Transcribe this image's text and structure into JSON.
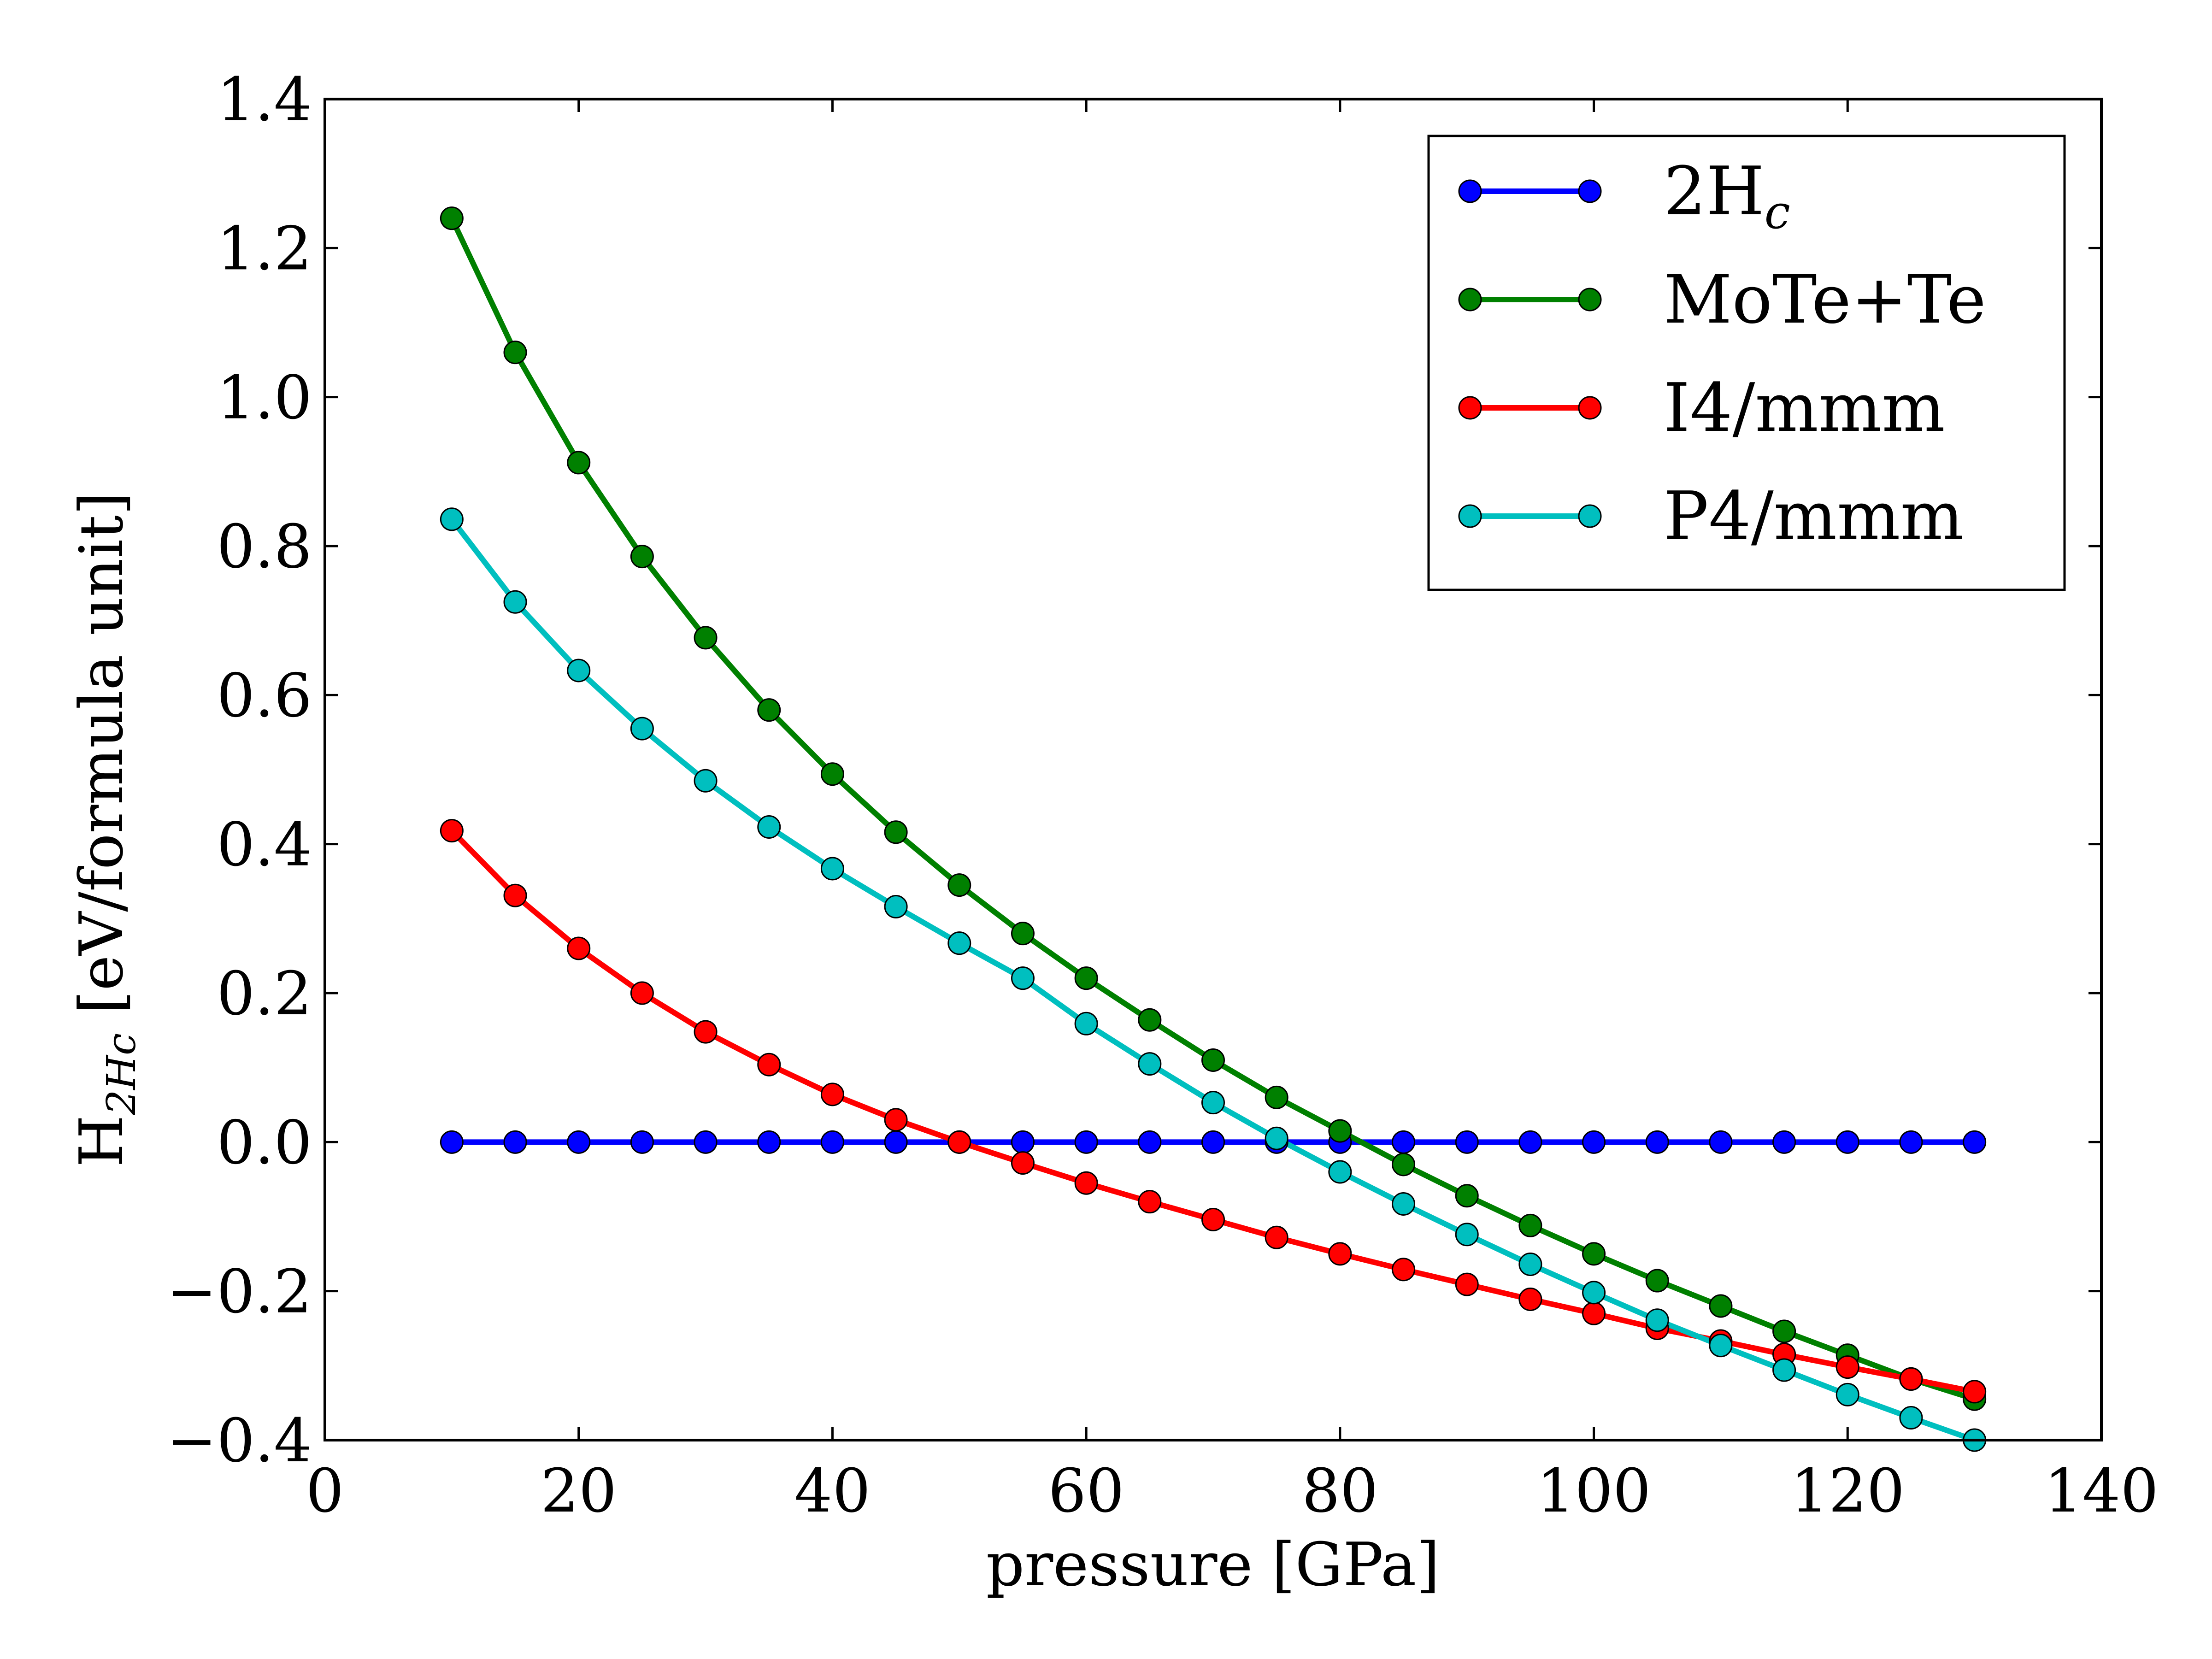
{
  "chart_data": {
    "type": "line",
    "xlabel": "pressure [GPa]",
    "ylabel": {
      "main": "H",
      "sub": "2Hc",
      "rest": " [eV/formula unit]"
    },
    "xlim": [
      0,
      140
    ],
    "ylim": [
      -0.4,
      1.4
    ],
    "xticks": [
      0,
      20,
      40,
      60,
      80,
      100,
      120,
      140
    ],
    "xtick_labels": [
      "0",
      "20",
      "40",
      "60",
      "80",
      "100",
      "120",
      "140"
    ],
    "yticks": [
      -0.4,
      -0.2,
      0.0,
      0.2,
      0.4,
      0.6,
      0.8,
      1.0,
      1.2,
      1.4
    ],
    "ytick_labels": [
      "−0.4",
      "−0.2",
      "0.0",
      "0.2",
      "0.4",
      "0.6",
      "0.8",
      "1.0",
      "1.2",
      "1.4"
    ],
    "grid": false,
    "legend_position": "top-right",
    "x": [
      10,
      15,
      20,
      25,
      30,
      35,
      40,
      45,
      50,
      55,
      60,
      65,
      70,
      75,
      80,
      85,
      90,
      95,
      100,
      105,
      110,
      115,
      120,
      125,
      130
    ],
    "series": [
      {
        "name": "2H",
        "name_sub": "c",
        "color": "#0000ff",
        "values": [
          0,
          0,
          0,
          0,
          0,
          0,
          0,
          0,
          0,
          0,
          0,
          0,
          0,
          0,
          0,
          0,
          0,
          0,
          0,
          0,
          0,
          0,
          0,
          0,
          0
        ]
      },
      {
        "name": "MoTe+Te",
        "name_sub": "",
        "color": "#008000",
        "values": [
          1.24,
          1.06,
          0.912,
          0.786,
          0.677,
          0.58,
          0.494,
          0.416,
          0.345,
          0.28,
          0.22,
          0.164,
          0.11,
          0.06,
          0.015,
          -0.03,
          -0.072,
          -0.112,
          -0.15,
          -0.186,
          -0.22,
          -0.254,
          -0.286,
          -0.318,
          -0.345
        ]
      },
      {
        "name": "I4/mmm",
        "name_sub": "",
        "color": "#ff0000",
        "values": [
          0.418,
          0.331,
          0.26,
          0.2,
          0.148,
          0.104,
          0.064,
          0.03,
          0.0,
          -0.028,
          -0.055,
          -0.08,
          -0.104,
          -0.128,
          -0.15,
          -0.171,
          -0.191,
          -0.211,
          -0.23,
          -0.25,
          -0.267,
          -0.285,
          -0.302,
          -0.318,
          -0.335
        ]
      },
      {
        "name": "P4/mmm",
        "name_sub": "",
        "color": "#00bfbf",
        "values": [
          0.836,
          0.725,
          0.633,
          0.555,
          0.485,
          0.423,
          0.367,
          0.316,
          0.267,
          0.22,
          0.159,
          0.105,
          0.053,
          0.005,
          -0.04,
          -0.083,
          -0.124,
          -0.164,
          -0.202,
          -0.239,
          -0.273,
          -0.306,
          -0.339,
          -0.37,
          -0.4
        ]
      }
    ]
  }
}
